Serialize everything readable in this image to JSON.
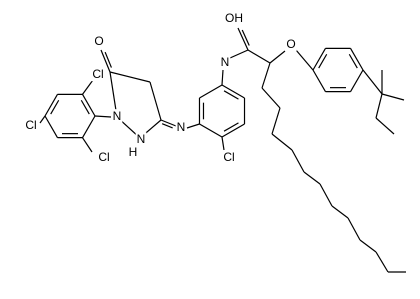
{
  "atoms": [
    {
      "label": "O"
    },
    {
      "label": "Cl"
    },
    {
      "label": "Cl"
    },
    {
      "label": "Cl"
    },
    {
      "label": "N"
    },
    {
      "label": "N"
    },
    {
      "label": "H"
    },
    {
      "label": "N"
    },
    {
      "label": "Cl"
    },
    {
      "label": "N"
    },
    {
      "label": "OH"
    },
    {
      "label": "O"
    }
  ]
}
